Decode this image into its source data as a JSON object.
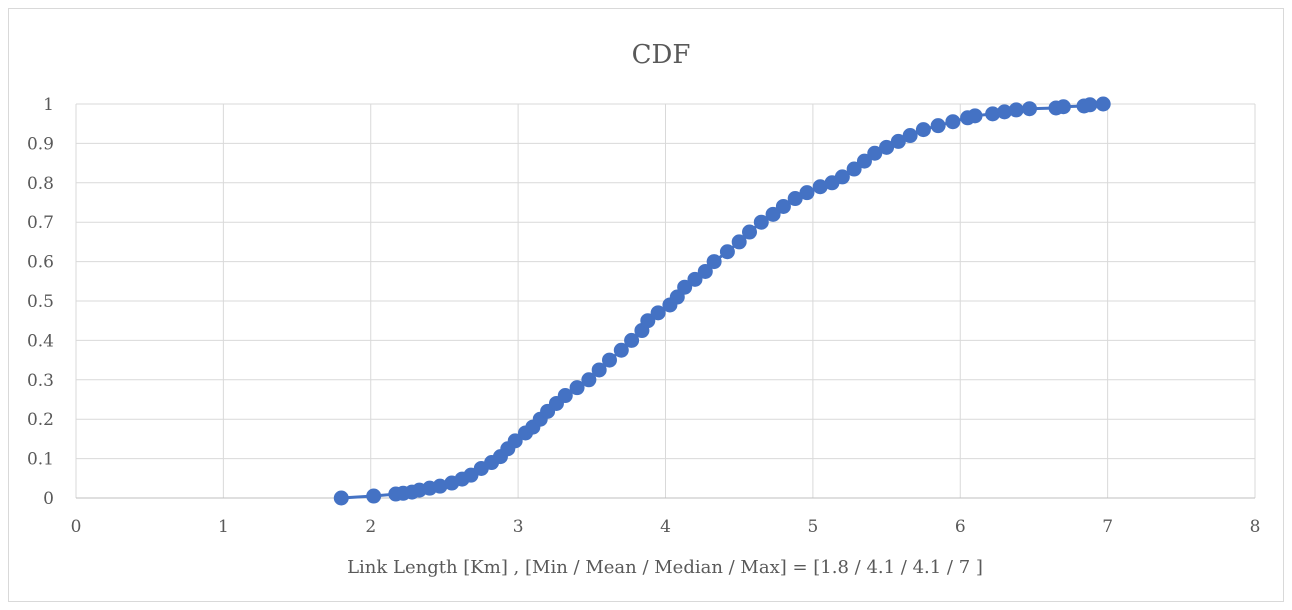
{
  "chart_data": {
    "type": "line",
    "title": "CDF",
    "xlabel": "Link Length [Km] , [Min / Mean / Median / Max] = [1.8 / 4.1 / 4.1 / 7 ]",
    "ylabel": "",
    "xlim": [
      0,
      8
    ],
    "ylim": [
      0,
      1
    ],
    "xticks": [
      "0",
      "1",
      "2",
      "3",
      "4",
      "5",
      "6",
      "7",
      "8"
    ],
    "yticks": [
      "0",
      "0.1",
      "0.2",
      "0.3",
      "0.4",
      "0.5",
      "0.6",
      "0.7",
      "0.8",
      "0.9",
      "1"
    ],
    "grid": true,
    "legend": "none",
    "series": [
      {
        "color": "#4472c4",
        "marker": "circle",
        "points": [
          [
            1.8,
            0.0
          ],
          [
            2.02,
            0.005
          ],
          [
            2.17,
            0.01
          ],
          [
            2.22,
            0.012
          ],
          [
            2.28,
            0.015
          ],
          [
            2.33,
            0.02
          ],
          [
            2.4,
            0.025
          ],
          [
            2.47,
            0.03
          ],
          [
            2.55,
            0.038
          ],
          [
            2.62,
            0.048
          ],
          [
            2.68,
            0.058
          ],
          [
            2.75,
            0.075
          ],
          [
            2.82,
            0.09
          ],
          [
            2.88,
            0.105
          ],
          [
            2.93,
            0.125
          ],
          [
            2.98,
            0.145
          ],
          [
            3.05,
            0.165
          ],
          [
            3.1,
            0.18
          ],
          [
            3.15,
            0.2
          ],
          [
            3.2,
            0.22
          ],
          [
            3.26,
            0.24
          ],
          [
            3.32,
            0.26
          ],
          [
            3.4,
            0.28
          ],
          [
            3.48,
            0.3
          ],
          [
            3.55,
            0.325
          ],
          [
            3.62,
            0.35
          ],
          [
            3.7,
            0.375
          ],
          [
            3.77,
            0.4
          ],
          [
            3.84,
            0.425
          ],
          [
            3.88,
            0.45
          ],
          [
            3.95,
            0.47
          ],
          [
            4.03,
            0.49
          ],
          [
            4.08,
            0.51
          ],
          [
            4.13,
            0.535
          ],
          [
            4.2,
            0.555
          ],
          [
            4.27,
            0.575
          ],
          [
            4.33,
            0.6
          ],
          [
            4.42,
            0.625
          ],
          [
            4.5,
            0.65
          ],
          [
            4.57,
            0.675
          ],
          [
            4.65,
            0.7
          ],
          [
            4.73,
            0.72
          ],
          [
            4.8,
            0.74
          ],
          [
            4.88,
            0.76
          ],
          [
            4.96,
            0.775
          ],
          [
            5.05,
            0.79
          ],
          [
            5.13,
            0.8
          ],
          [
            5.2,
            0.815
          ],
          [
            5.28,
            0.835
          ],
          [
            5.35,
            0.855
          ],
          [
            5.42,
            0.875
          ],
          [
            5.5,
            0.89
          ],
          [
            5.58,
            0.905
          ],
          [
            5.66,
            0.92
          ],
          [
            5.75,
            0.935
          ],
          [
            5.85,
            0.945
          ],
          [
            5.95,
            0.955
          ],
          [
            6.05,
            0.965
          ],
          [
            6.1,
            0.97
          ],
          [
            6.22,
            0.975
          ],
          [
            6.3,
            0.98
          ],
          [
            6.38,
            0.985
          ],
          [
            6.47,
            0.988
          ],
          [
            6.65,
            0.99
          ],
          [
            6.7,
            0.993
          ],
          [
            6.84,
            0.995
          ],
          [
            6.88,
            0.998
          ],
          [
            6.97,
            1.0
          ]
        ]
      }
    ]
  }
}
